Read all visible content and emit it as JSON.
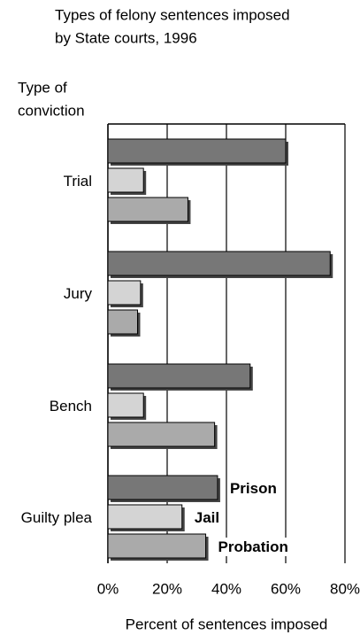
{
  "chart_data": {
    "type": "hbar",
    "title": [
      "Types of felony sentences imposed",
      "by State courts, 1996"
    ],
    "ylabel": [
      "Type of",
      "conviction"
    ],
    "xlabel": "Percent of sentences imposed",
    "categories": [
      "Trial",
      "Jury",
      "Bench",
      "Guilty plea"
    ],
    "series": [
      {
        "name": "Prison",
        "color": "#777777",
        "values": [
          60,
          75,
          48,
          37
        ]
      },
      {
        "name": "Jail",
        "color": "#d4d4d4",
        "values": [
          12,
          11,
          12,
          25
        ]
      },
      {
        "name": "Probation",
        "color": "#aaaaaa",
        "values": [
          27,
          10,
          36,
          33
        ]
      }
    ],
    "xlim": [
      0,
      80
    ],
    "xticks": [
      {
        "value": 0,
        "label": "0%"
      },
      {
        "value": 20,
        "label": "20%"
      },
      {
        "value": 40,
        "label": "40%"
      },
      {
        "value": 60,
        "label": "60%"
      },
      {
        "value": 80,
        "label": "80%"
      }
    ],
    "grid": true
  }
}
